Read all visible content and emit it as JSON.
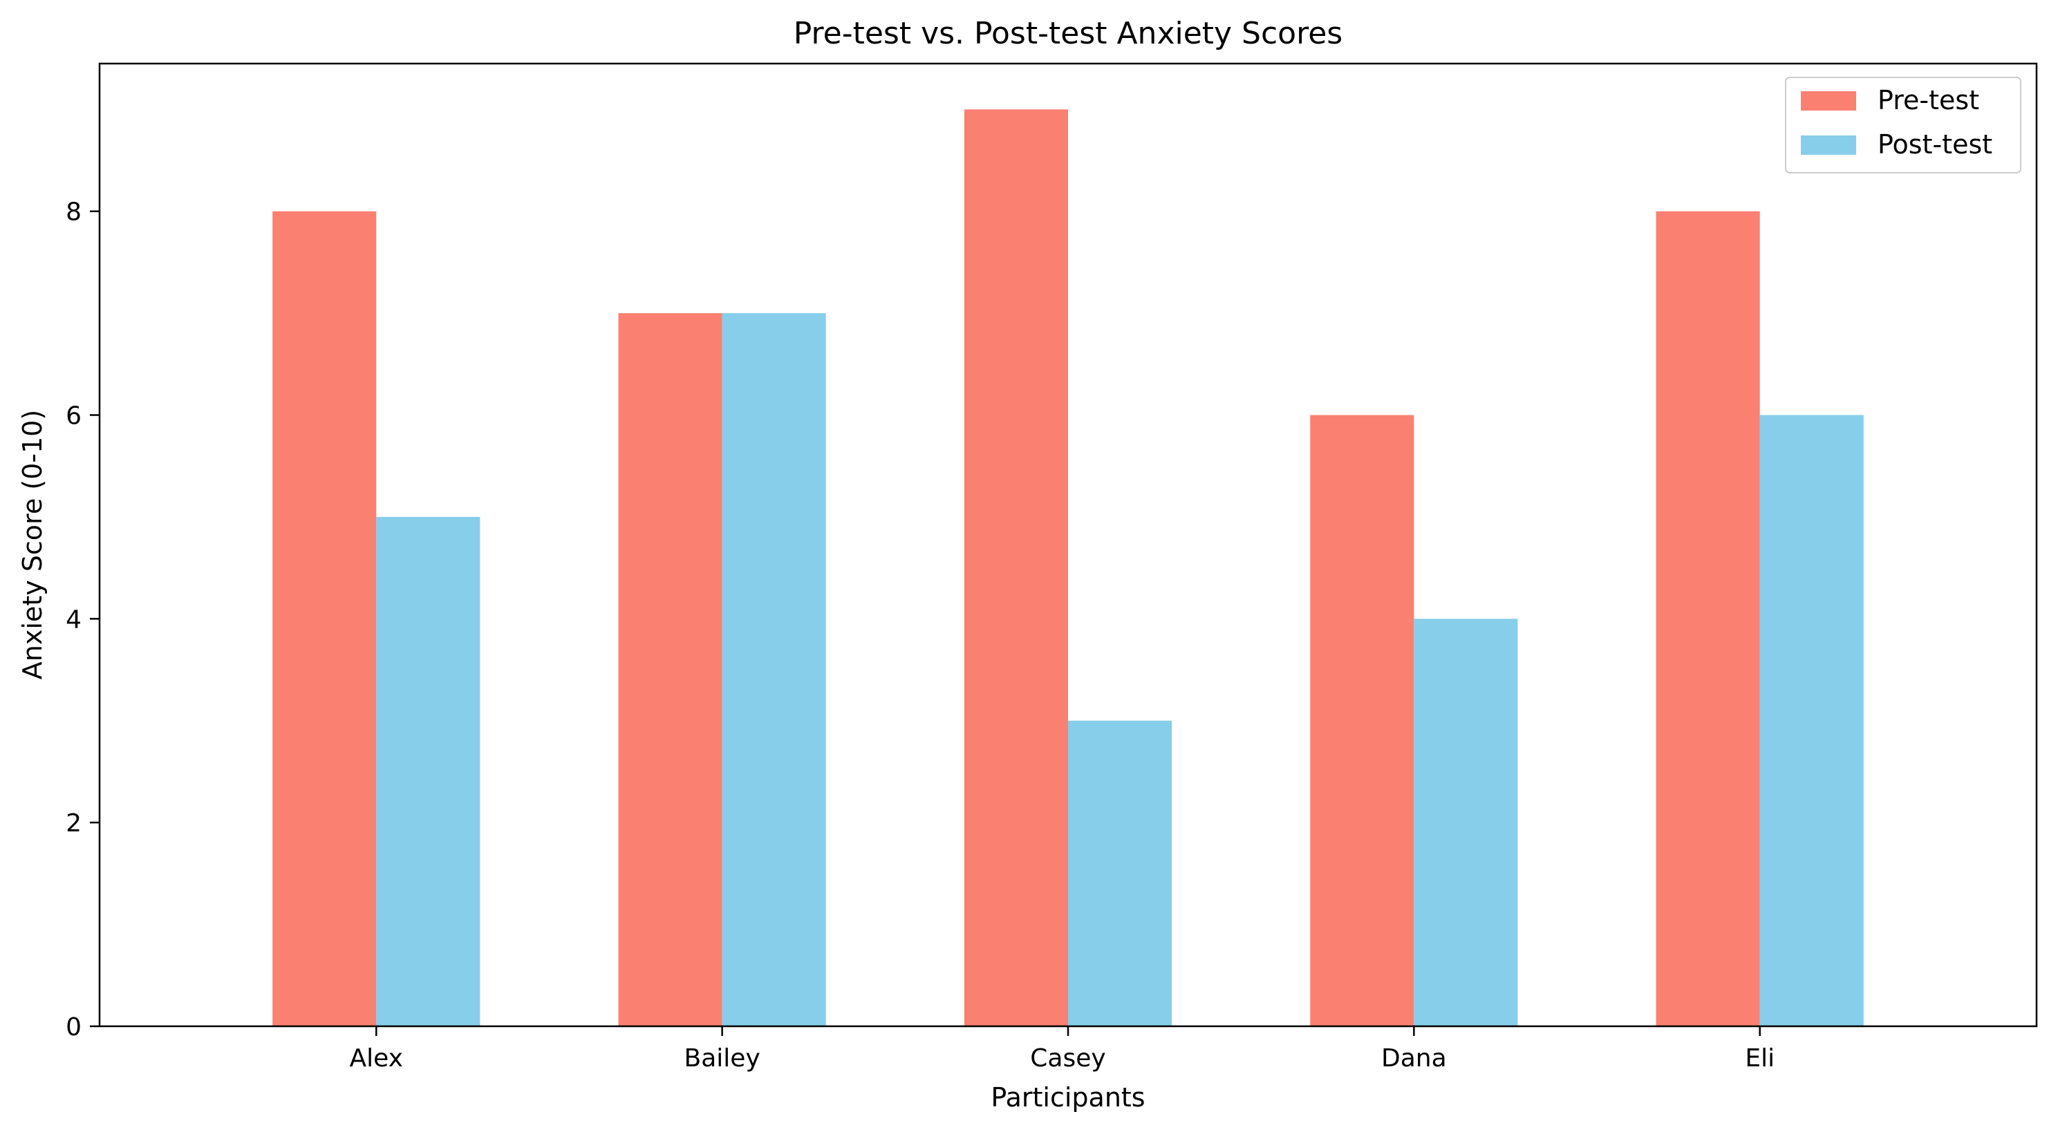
{
  "chart_data": {
    "type": "bar",
    "title": "Pre-test vs. Post-test Anxiety Scores",
    "xlabel": "Participants",
    "ylabel": "Anxiety Score (0-10)",
    "categories": [
      "Alex",
      "Bailey",
      "Casey",
      "Dana",
      "Eli"
    ],
    "series": [
      {
        "name": "Pre-test",
        "color": "#FA8072",
        "values": [
          8,
          7,
          9,
          6,
          8
        ]
      },
      {
        "name": "Post-test",
        "color": "#87CEEB",
        "values": [
          5,
          7,
          3,
          4,
          6
        ]
      }
    ],
    "ylim": [
      0,
      9.45
    ],
    "yticks": [
      0,
      2,
      4,
      6,
      8
    ],
    "grid": false,
    "legend_position": "top-right"
  }
}
